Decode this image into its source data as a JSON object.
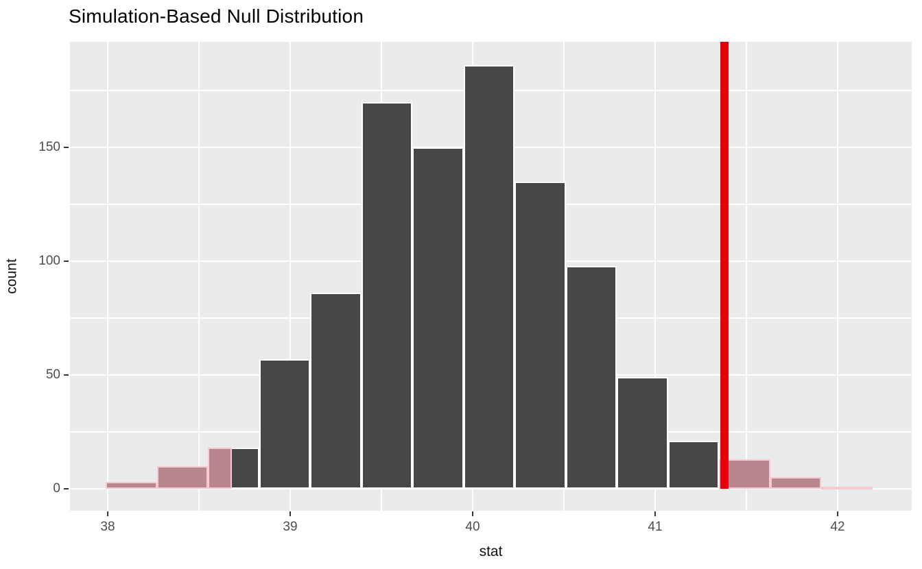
{
  "title": "Simulation-Based Null Distribution",
  "chart_data": {
    "type": "bar",
    "subtype": "histogram",
    "title": "Simulation-Based Null Distribution",
    "xlabel": "stat",
    "ylabel": "count",
    "x_ticks": [
      38,
      39,
      40,
      41,
      42
    ],
    "y_ticks": [
      0,
      50,
      100,
      150
    ],
    "x_minor_ticks": [
      38.5,
      39.5,
      40.5,
      41.5
    ],
    "y_minor_ticks": [
      25,
      75,
      125,
      175
    ],
    "xlim": [
      37.78,
      42.41
    ],
    "ylim": [
      -9.6,
      196.4
    ],
    "bin_width": 0.28,
    "grid": true,
    "legend": "none",
    "observed_stat": 41.38,
    "two_sided_mirror_cutoff": 38.68,
    "bins": [
      {
        "x0": 37.99,
        "x1": 38.27,
        "count": 3,
        "region": "tail"
      },
      {
        "x0": 38.27,
        "x1": 38.55,
        "count": 10,
        "region": "tail"
      },
      {
        "x0": 38.55,
        "x1": 38.83,
        "count": 18,
        "region": "split",
        "split_at": 38.68
      },
      {
        "x0": 38.83,
        "x1": 39.11,
        "count": 57,
        "region": "null"
      },
      {
        "x0": 39.11,
        "x1": 39.39,
        "count": 86,
        "region": "null"
      },
      {
        "x0": 39.39,
        "x1": 39.67,
        "count": 170,
        "region": "null"
      },
      {
        "x0": 39.67,
        "x1": 39.95,
        "count": 150,
        "region": "null"
      },
      {
        "x0": 39.95,
        "x1": 40.23,
        "count": 186,
        "region": "null"
      },
      {
        "x0": 40.23,
        "x1": 40.51,
        "count": 135,
        "region": "null"
      },
      {
        "x0": 40.51,
        "x1": 40.79,
        "count": 98,
        "region": "null"
      },
      {
        "x0": 40.79,
        "x1": 41.07,
        "count": 49,
        "region": "null"
      },
      {
        "x0": 41.07,
        "x1": 41.35,
        "count": 21,
        "region": "null"
      },
      {
        "x0": 41.35,
        "x1": 41.63,
        "count": 13,
        "region": "tail"
      },
      {
        "x0": 41.63,
        "x1": 41.91,
        "count": 5,
        "region": "tail"
      },
      {
        "x0": 41.91,
        "x1": 42.19,
        "count": 1,
        "region": "tail"
      }
    ]
  },
  "colors": {
    "panel_background": "#EBEBEB",
    "gridline": "#FFFFFF",
    "null_bar_fill": "#474747",
    "bar_outline": "#FFFFFF",
    "tail_bar_fill": "#B8868F",
    "tail_bar_outline": "#F6C9D1",
    "observed_line": "#E60008",
    "tick_label": "#4D4D4D",
    "axis_title": "#111111",
    "title": "#000000"
  }
}
